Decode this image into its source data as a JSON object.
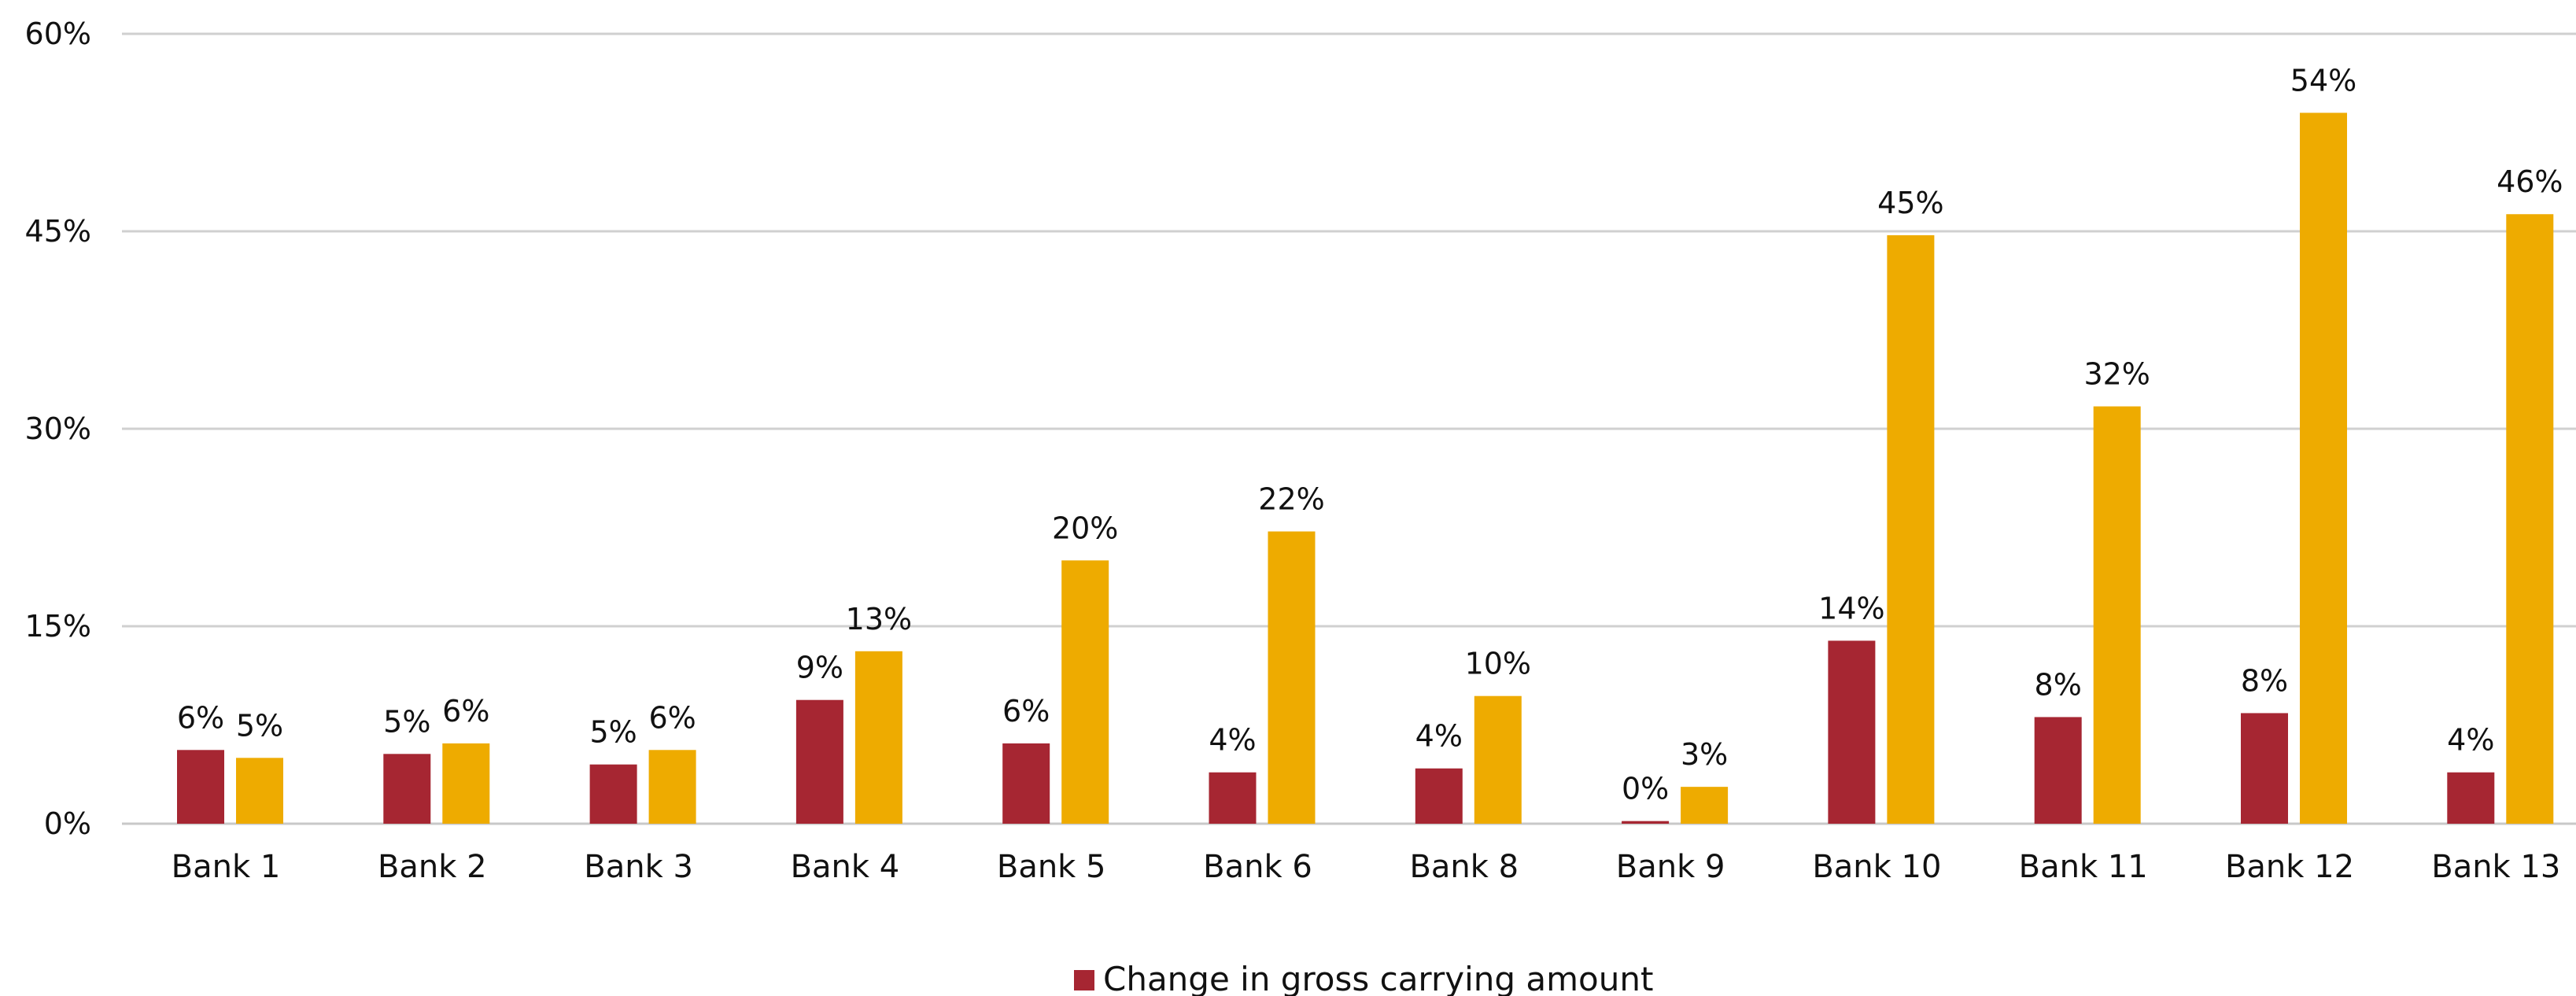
{
  "chart_data": {
    "type": "bar",
    "categories": [
      "Bank 1",
      "Bank 2",
      "Bank 3",
      "Bank 4",
      "Bank 5",
      "Bank 6",
      "Bank 8",
      "Bank 9",
      "Bank 10",
      "Bank 11",
      "Bank 12",
      "Bank 13"
    ],
    "series": [
      {
        "name": "Change in gross carrying amount",
        "color": "#a62632",
        "values": [
          5.6,
          5.3,
          4.5,
          9.4,
          6.1,
          3.9,
          4.2,
          0.2,
          13.9,
          8.1,
          8.4,
          3.9
        ],
        "labels": [
          "6%",
          "5%",
          "5%",
          "9%",
          "6%",
          "4%",
          "4%",
          "0%",
          "14%",
          "8%",
          "8%",
          "4%"
        ]
      },
      {
        "name": "",
        "color": "#eeab00",
        "values": [
          5.0,
          6.1,
          5.6,
          13.1,
          20.0,
          22.2,
          9.7,
          2.8,
          44.7,
          31.7,
          54.0,
          46.3
        ],
        "labels": [
          "5%",
          "6%",
          "6%",
          "13%",
          "20%",
          "22%",
          "10%",
          "3%",
          "45%",
          "32%",
          "54%",
          "46%"
        ]
      }
    ],
    "y_ticks": [
      "0%",
      "15%",
      "30%",
      "45%",
      "60%"
    ],
    "y_tick_values": [
      0,
      15,
      30,
      45,
      60
    ],
    "ylim": [
      0,
      60
    ],
    "grid": true,
    "legend_position": "bottom"
  }
}
